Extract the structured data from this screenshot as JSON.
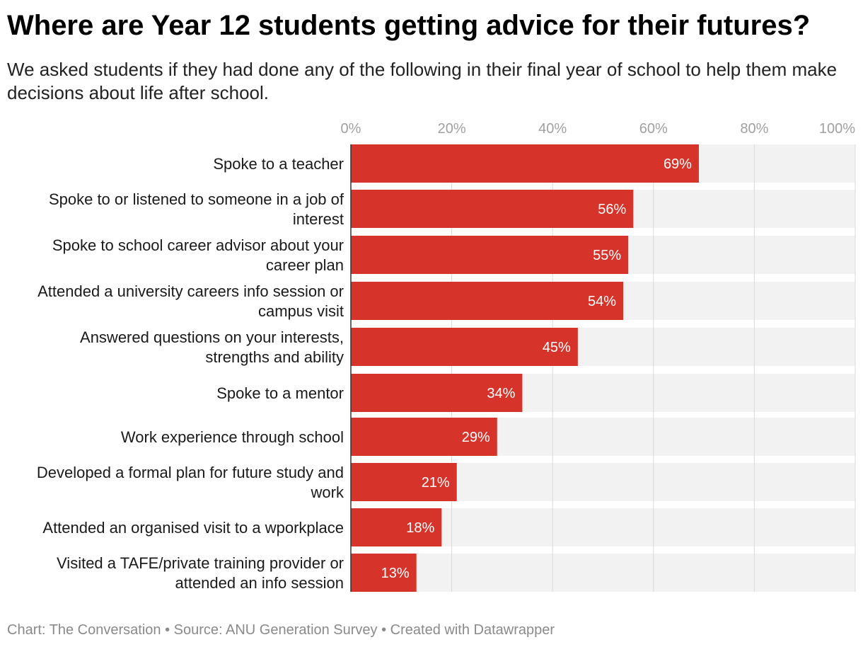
{
  "title": "Where are Year 12 students getting advice for their futures?",
  "subtitle": "We asked students if they had done any of the following in their final year of school to help them make decisions about life after school.",
  "footer": "Chart: The Conversation • Source: ANU Generation Survey • Created with Datawrapper",
  "colors": {
    "bar": "#d6342b",
    "track": "#f2f2f2",
    "grid": "#d9d9d9",
    "tick_text": "#a0a0a0",
    "value_text": "#ffffff"
  },
  "chart_data": {
    "type": "bar",
    "orientation": "horizontal",
    "xlim": [
      0,
      100
    ],
    "x_ticks": [
      "0%",
      "20%",
      "40%",
      "60%",
      "80%",
      "100%"
    ],
    "x_tick_values": [
      0,
      20,
      40,
      60,
      80,
      100
    ],
    "grid": true,
    "categories": [
      [
        "Spoke to a teacher"
      ],
      [
        "Spoke to or listened to someone in a job of",
        "interest"
      ],
      [
        "Spoke to school career advisor about your",
        "career plan"
      ],
      [
        "Attended a university careers info session or",
        "campus visit"
      ],
      [
        "Answered questions on your interests,",
        "strengths and ability"
      ],
      [
        "Spoke to a mentor"
      ],
      [
        "Work experience through school"
      ],
      [
        "Developed a formal plan for future study and",
        "work"
      ],
      [
        "Attended an organised visit to a wporkplace"
      ],
      [
        "Visited a TAFE/private training provider or",
        "attended an info session"
      ]
    ],
    "values": [
      69,
      56,
      55,
      54,
      45,
      34,
      29,
      21,
      18,
      13
    ],
    "value_labels": [
      "69%",
      "56%",
      "55%",
      "54%",
      "45%",
      "34%",
      "29%",
      "21%",
      "18%",
      "13%"
    ]
  }
}
